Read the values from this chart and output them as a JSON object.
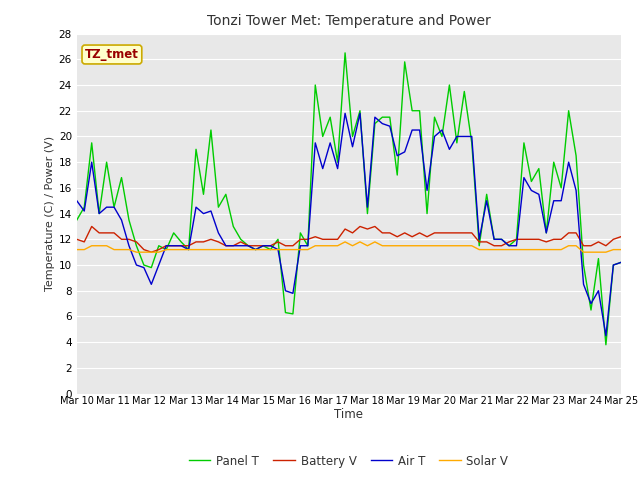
{
  "title": "Tonzi Tower Met: Temperature and Power",
  "xlabel": "Time",
  "ylabel": "Temperature (C) / Power (V)",
  "ylim": [
    0,
    28
  ],
  "yticks": [
    0,
    2,
    4,
    6,
    8,
    10,
    12,
    14,
    16,
    18,
    20,
    22,
    24,
    26,
    28
  ],
  "x_labels": [
    "Mar 10",
    "Mar 11",
    "Mar 12",
    "Mar 13",
    "Mar 14",
    "Mar 15",
    "Mar 16",
    "Mar 17",
    "Mar 18",
    "Mar 19",
    "Mar 20",
    "Mar 21",
    "Mar 22",
    "Mar 23",
    "Mar 24",
    "Mar 25"
  ],
  "plot_bg_color": "#e8e8e8",
  "fig_bg_color": "#ffffff",
  "grid_color": "#ffffff",
  "annotation_text": "TZ_tmet",
  "annotation_color": "#990000",
  "annotation_bg": "#ffffcc",
  "annotation_border": "#ccaa00",
  "legend_entries": [
    "Panel T",
    "Battery V",
    "Air T",
    "Solar V"
  ],
  "line_colors": [
    "#00cc00",
    "#cc2200",
    "#0000cc",
    "#ffaa00"
  ],
  "panel_t": [
    13.5,
    14.5,
    19.5,
    14.0,
    18.0,
    14.5,
    16.8,
    13.5,
    11.5,
    10.0,
    9.8,
    11.5,
    11.2,
    12.5,
    11.8,
    11.2,
    19.0,
    15.5,
    20.5,
    14.5,
    15.5,
    13.0,
    12.0,
    11.5,
    11.2,
    11.5,
    11.2,
    12.0,
    6.3,
    6.2,
    12.5,
    11.5,
    24.0,
    20.0,
    21.5,
    18.0,
    26.5,
    20.0,
    22.0,
    14.0,
    21.0,
    21.5,
    21.5,
    17.0,
    25.8,
    22.0,
    22.0,
    14.0,
    21.5,
    20.0,
    24.0,
    19.5,
    23.5,
    19.5,
    11.5,
    15.5,
    12.0,
    12.0,
    11.5,
    12.0,
    19.5,
    16.5,
    17.5,
    12.5,
    18.0,
    16.0,
    22.0,
    18.5,
    10.0,
    6.5,
    10.5,
    3.8,
    10.0,
    10.2
  ],
  "battery_v": [
    12.0,
    11.8,
    13.0,
    12.5,
    12.5,
    12.5,
    12.0,
    12.0,
    11.8,
    11.2,
    11.0,
    11.2,
    11.5,
    11.5,
    11.5,
    11.5,
    11.8,
    11.8,
    12.0,
    11.8,
    11.5,
    11.5,
    11.8,
    11.5,
    11.5,
    11.5,
    11.5,
    11.8,
    11.5,
    11.5,
    12.0,
    12.0,
    12.2,
    12.0,
    12.0,
    12.0,
    12.8,
    12.5,
    13.0,
    12.8,
    13.0,
    12.5,
    12.5,
    12.2,
    12.5,
    12.2,
    12.5,
    12.2,
    12.5,
    12.5,
    12.5,
    12.5,
    12.5,
    12.5,
    11.8,
    11.8,
    11.5,
    11.5,
    11.8,
    12.0,
    12.0,
    12.0,
    12.0,
    11.8,
    12.0,
    12.0,
    12.5,
    12.5,
    11.5,
    11.5,
    11.8,
    11.5,
    12.0,
    12.2
  ],
  "air_t": [
    15.0,
    14.2,
    18.0,
    14.0,
    14.5,
    14.5,
    13.5,
    11.5,
    10.0,
    9.8,
    8.5,
    10.0,
    11.5,
    11.5,
    11.5,
    11.2,
    14.5,
    14.0,
    14.2,
    12.5,
    11.5,
    11.5,
    11.5,
    11.5,
    11.2,
    11.5,
    11.5,
    11.2,
    8.0,
    7.8,
    11.5,
    11.5,
    19.5,
    17.5,
    19.5,
    17.5,
    21.8,
    19.2,
    21.8,
    14.5,
    21.5,
    21.0,
    20.8,
    18.5,
    18.8,
    20.5,
    20.5,
    15.8,
    20.0,
    20.5,
    19.0,
    20.0,
    20.0,
    20.0,
    12.0,
    15.0,
    12.0,
    12.0,
    11.5,
    11.5,
    16.8,
    15.8,
    15.5,
    12.5,
    15.0,
    15.0,
    18.0,
    15.8,
    8.5,
    7.0,
    8.0,
    4.5,
    10.0,
    10.2
  ],
  "solar_v": [
    11.2,
    11.2,
    11.5,
    11.5,
    11.5,
    11.2,
    11.2,
    11.2,
    11.0,
    11.0,
    11.0,
    11.0,
    11.2,
    11.2,
    11.2,
    11.2,
    11.2,
    11.2,
    11.2,
    11.2,
    11.2,
    11.2,
    11.2,
    11.2,
    11.2,
    11.2,
    11.2,
    11.2,
    11.2,
    11.2,
    11.2,
    11.2,
    11.5,
    11.5,
    11.5,
    11.5,
    11.8,
    11.5,
    11.8,
    11.5,
    11.8,
    11.5,
    11.5,
    11.5,
    11.5,
    11.5,
    11.5,
    11.5,
    11.5,
    11.5,
    11.5,
    11.5,
    11.5,
    11.5,
    11.2,
    11.2,
    11.2,
    11.2,
    11.2,
    11.2,
    11.2,
    11.2,
    11.2,
    11.2,
    11.2,
    11.2,
    11.5,
    11.5,
    11.0,
    11.0,
    11.0,
    11.0,
    11.2,
    11.2
  ]
}
